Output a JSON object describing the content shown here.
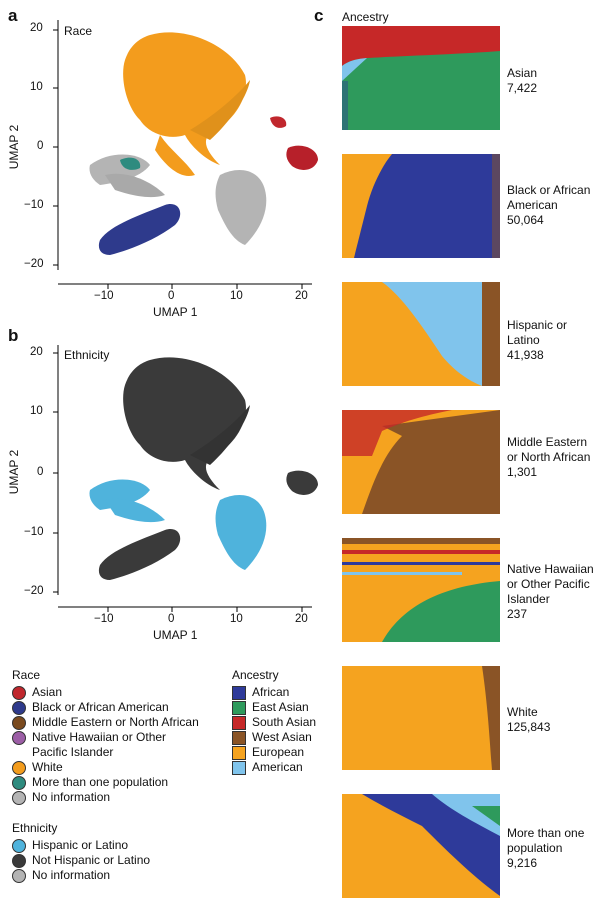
{
  "panels": {
    "a": {
      "letter": "a",
      "title": "Race"
    },
    "b": {
      "letter": "b",
      "title": "Ethnicity"
    },
    "c": {
      "letter": "c",
      "title": "Ancestry"
    }
  },
  "umap_axes": {
    "xlabel": "UMAP 1",
    "ylabel": "UMAP 2",
    "xticks": [
      "−10",
      "0",
      "10",
      "20"
    ],
    "yticks": [
      "20",
      "10",
      "0",
      "−10",
      "−20"
    ]
  },
  "legend": {
    "race": {
      "title": "Race",
      "items": [
        {
          "label": "Asian",
          "color": "#c0272d"
        },
        {
          "label": "Black or African American",
          "color": "#2e3a8c"
        },
        {
          "label": "Middle Eastern or North African",
          "color": "#7a4a1e"
        },
        {
          "label": "Native Hawaiian or Other",
          "label2": "Pacific Islander",
          "color": "#9c5ea6"
        },
        {
          "label": "White",
          "color": "#f39c1d"
        },
        {
          "label": "More than one population",
          "color": "#2e8b7f"
        },
        {
          "label": "No information",
          "color": "#b4b4b4"
        }
      ]
    },
    "ethnicity": {
      "title": "Ethnicity",
      "items": [
        {
          "label": "Hispanic or Latino",
          "color": "#4fb3dc"
        },
        {
          "label": "Not Hispanic or Latino",
          "color": "#3a3a3a"
        },
        {
          "label": "No information",
          "color": "#b4b4b4"
        }
      ]
    },
    "ancestry": {
      "title": "Ancestry",
      "items": [
        {
          "label": "African",
          "color": "#2e3a9a"
        },
        {
          "label": "East Asian",
          "color": "#2e9a5c"
        },
        {
          "label": "South Asian",
          "color": "#c62828"
        },
        {
          "label": "West Asian",
          "color": "#8a5426"
        },
        {
          "label": "European",
          "color": "#f5a31f"
        },
        {
          "label": "American",
          "color": "#80c4ec"
        }
      ]
    }
  },
  "ancestry_groups": [
    {
      "line1": "Asian",
      "line2": "7,422"
    },
    {
      "line1": "Black or African",
      "line2": "American",
      "line3": "50,064"
    },
    {
      "line1": "Hispanic or",
      "line2": "Latino",
      "line3": "41,938"
    },
    {
      "line1": "Middle Eastern",
      "line2": "or North African",
      "line3": "1,301"
    },
    {
      "line1": "Native Hawaiian",
      "line2": "or Other Pacific",
      "line3": "Islander",
      "line4": "237"
    },
    {
      "line1": "White",
      "line2": "125,843"
    },
    {
      "line1": "More than one",
      "line2": "population",
      "line3": "9,216"
    }
  ],
  "chart_data": [
    {
      "type": "scatter",
      "title": "Race",
      "xlabel": "UMAP 1",
      "ylabel": "UMAP 2",
      "xlim": [
        -16,
        22
      ],
      "ylim": [
        -21,
        21
      ],
      "grid": false,
      "series": [
        {
          "name": "White",
          "color": "#f39c1d",
          "x": [
            -2,
            0,
            2,
            4,
            6,
            -4,
            -6,
            8,
            10
          ],
          "y": [
            17,
            18,
            16,
            14,
            12,
            12,
            10,
            4,
            2
          ]
        },
        {
          "name": "Black or African American",
          "color": "#2e3a8c",
          "x": [
            -10,
            -8,
            -6,
            -4,
            -12
          ],
          "y": [
            -16,
            -14,
            -12,
            -10,
            -18
          ]
        },
        {
          "name": "No information",
          "color": "#b4b4b4",
          "x": [
            8,
            10,
            12,
            14,
            -8,
            -6
          ],
          "y": [
            -6,
            -8,
            -10,
            -4,
            -2,
            -4
          ]
        },
        {
          "name": "Asian",
          "color": "#c0272d",
          "x": [
            18,
            19,
            20,
            17
          ],
          "y": [
            2,
            0,
            -1,
            4
          ]
        }
      ]
    },
    {
      "type": "scatter",
      "title": "Ethnicity",
      "xlabel": "UMAP 1",
      "ylabel": "UMAP 2",
      "xlim": [
        -16,
        22
      ],
      "ylim": [
        -21,
        21
      ],
      "grid": false,
      "series": [
        {
          "name": "Not Hispanic or Latino",
          "color": "#3a3a3a",
          "x": [
            -2,
            0,
            2,
            4,
            -10,
            -8,
            -6
          ],
          "y": [
            17,
            18,
            16,
            14,
            -16,
            -14,
            -12
          ]
        },
        {
          "name": "Hispanic or Latino",
          "color": "#4fb3dc",
          "x": [
            8,
            10,
            12,
            14,
            -8,
            -6
          ],
          "y": [
            -6,
            -8,
            -10,
            -4,
            -2,
            -4
          ]
        }
      ]
    },
    {
      "type": "area",
      "title": "Ancestry",
      "xlabel": "",
      "ylabel": "",
      "groups": [
        {
          "name": "Asian",
          "n": 7422,
          "dominant": "East Asian",
          "secondary": "South Asian"
        },
        {
          "name": "Black or African American",
          "n": 50064,
          "dominant": "African",
          "secondary": "European"
        },
        {
          "name": "Hispanic or Latino",
          "n": 41938,
          "dominant": "European",
          "secondary": "American"
        },
        {
          "name": "Middle Eastern or North African",
          "n": 1301,
          "dominant": "West Asian",
          "secondary": "European"
        },
        {
          "name": "Native Hawaiian or Other Pacific Islander",
          "n": 237,
          "dominant": "East Asian",
          "secondary": "European"
        },
        {
          "name": "White",
          "n": 125843,
          "dominant": "European",
          "secondary": "West Asian"
        },
        {
          "name": "More than one population",
          "n": 9216,
          "dominant": "European",
          "secondary": "African"
        }
      ]
    }
  ]
}
